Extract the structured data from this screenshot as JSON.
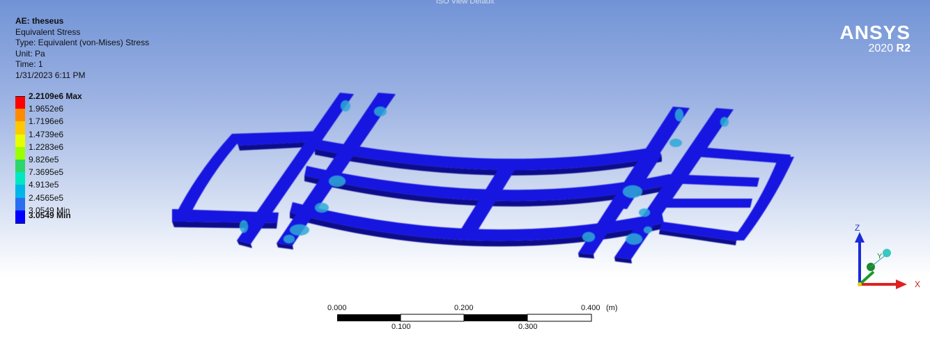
{
  "viewport": {
    "top_caption": "ISO View Default"
  },
  "info": {
    "title": "AE: theseus",
    "line1": "Equivalent Stress",
    "line2": "Type: Equivalent (von-Mises) Stress",
    "line3": "Unit: Pa",
    "line4": "Time: 1",
    "line5": "1/31/2023 6:11 PM"
  },
  "legend": {
    "labels": [
      "2.2109e6 Max",
      "1.9652e6",
      "1.7196e6",
      "1.4739e6",
      "1.2283e6",
      "9.826e5",
      "7.3695e5",
      "4.913e5",
      "2.4565e5",
      "3.0549 Min"
    ],
    "colors": [
      "#ff0000",
      "#ff8c00",
      "#ffc800",
      "#e8ff00",
      "#9aff00",
      "#2dd66b",
      "#00e8c2",
      "#00b6e8",
      "#2a6df0",
      "#0000ff"
    ]
  },
  "logo": {
    "name": "ANSYS",
    "year": "2020",
    "release": "R2"
  },
  "scale_bar": {
    "l0": "0.000",
    "l1": "0.200",
    "l2": "0.400",
    "unit": "(m)",
    "l3": "0.100",
    "l4": "0.300"
  },
  "triad": {
    "z": "Z",
    "y": "Y",
    "x": "X"
  },
  "colors": {
    "frame": "#1414e0",
    "frame_dark": "#0a0a8c",
    "stress_low": "#2ea8d8"
  }
}
